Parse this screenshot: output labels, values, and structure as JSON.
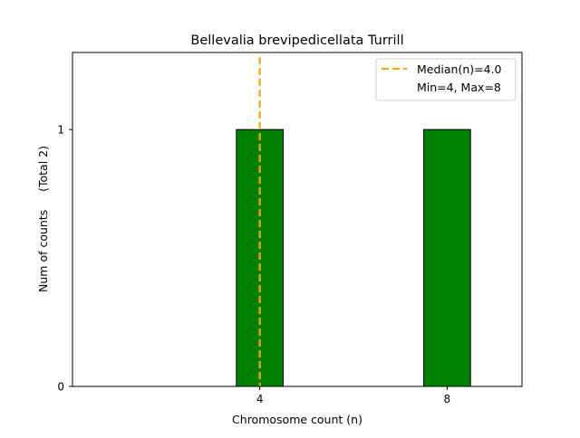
{
  "chart_data": {
    "type": "bar",
    "title": "Bellevalia brevipedicellata Turrill",
    "xlabel": "Chromosome count (n)",
    "ylabel": "Num of counts     (Total 2)",
    "x": [
      4,
      8
    ],
    "values": [
      1,
      1
    ],
    "bar_width": 1,
    "xlim": [
      0,
      9.6
    ],
    "ylim": [
      0,
      1.3
    ],
    "xticks": [
      4,
      8
    ],
    "yticks": [
      0,
      1
    ],
    "grid": false,
    "bar_color": "#008000",
    "median": 4.0,
    "median_color": "#FFA500",
    "legend": {
      "placement": "top-right",
      "entries": [
        "Median(n)=4.0",
        "Min=4, Max=8"
      ]
    }
  }
}
